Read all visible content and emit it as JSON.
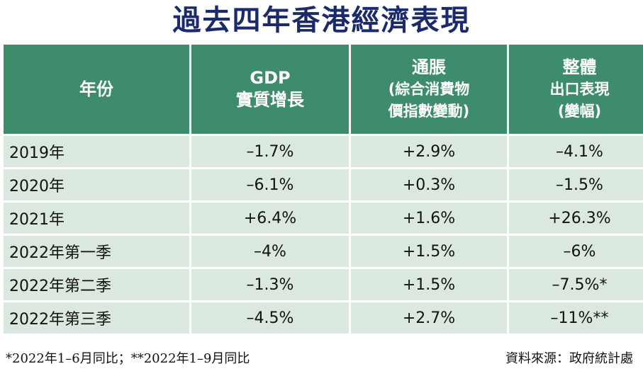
{
  "header": {
    "title": "過去四年香港經濟表現"
  },
  "table": {
    "columns": [
      [
        "年份"
      ],
      [
        "GDP",
        "實質增長"
      ],
      [
        "通脹",
        "(綜合消費物",
        "價指數變動)"
      ],
      [
        "整體",
        "出口表現",
        "(變幅)"
      ]
    ],
    "rows": [
      [
        "2019年",
        "–1.7%",
        "+2.9%",
        "–4.1%"
      ],
      [
        "2020年",
        "–6.1%",
        "+0.3%",
        "–1.5%"
      ],
      [
        "2021年",
        "+6.4%",
        "+1.6%",
        "+26.3%"
      ],
      [
        "2022年第一季",
        "–4%",
        "+1.5%",
        "–6%"
      ],
      [
        "2022年第二季",
        "–1.3%",
        "+1.5%",
        "–7.5%*"
      ],
      [
        "2022年第三季",
        "–4.5%",
        "+2.7%",
        "–11%**"
      ]
    ]
  },
  "footer": {
    "note": "*2022年1–6月同比；**2022年1–9月同比",
    "source": "資料來源：政府統計處"
  }
}
